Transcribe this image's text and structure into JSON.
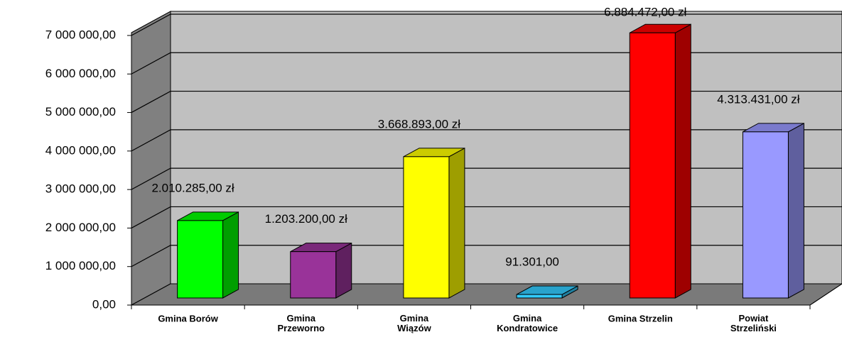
{
  "chart_data": {
    "type": "bar3d",
    "categories": [
      "Gmina Borów",
      "Gmina\nPrzeworno",
      "Gmina\nWiązów",
      "Gmina\nKondratowice",
      "Gmina Strzelin",
      "Powiat\nStrzeliński"
    ],
    "values": [
      2010285,
      1203200,
      3668893,
      91301,
      6884472,
      4313431
    ],
    "value_labels": [
      "2.010.285,00 zł",
      "1.203.200,00 zł",
      "3.668.893,00 zł",
      "91.301,00",
      "6.884.472,00 zł",
      "4.313.431,00 zł"
    ],
    "colors": [
      "#00ff00",
      "#993399",
      "#ffff00",
      "#33ccff",
      "#ff0000",
      "#9999ff"
    ],
    "ylim": [
      0,
      7000000
    ],
    "yticks": [
      {
        "value": 0,
        "label": "0,00"
      },
      {
        "value": 1000000,
        "label": "1 000 000,00"
      },
      {
        "value": 2000000,
        "label": "2 000 000,00"
      },
      {
        "value": 3000000,
        "label": "3 000 000,00"
      },
      {
        "value": 4000000,
        "label": "4 000 000,00"
      },
      {
        "value": 5000000,
        "label": "5 000 000,00"
      },
      {
        "value": 6000000,
        "label": "6 000 000,00"
      },
      {
        "value": 7000000,
        "label": "7 000 000,00"
      }
    ],
    "grid": true
  }
}
